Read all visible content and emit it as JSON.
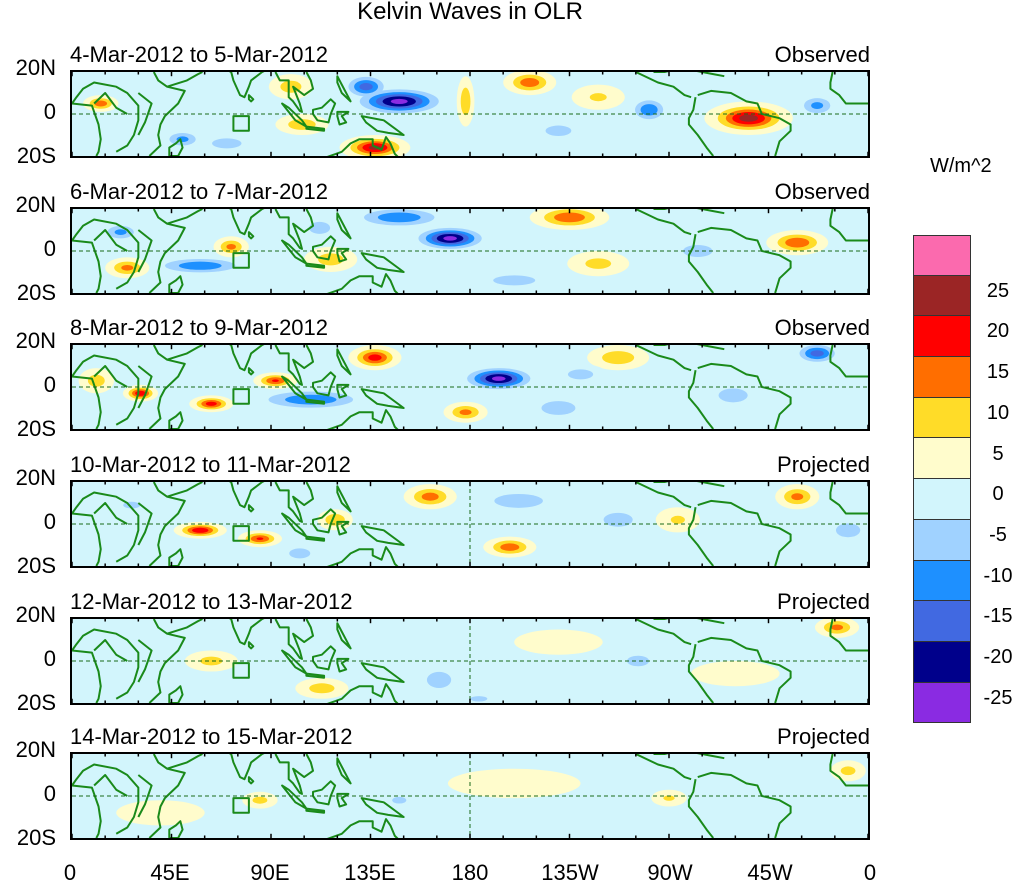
{
  "title": "Kelvin Waves in OLR",
  "units": "W/m^2",
  "y_ticks": [
    "20N",
    "0",
    "20S"
  ],
  "x_ticks": [
    {
      "label": "0",
      "lon": 0
    },
    {
      "label": "45E",
      "lon": 45
    },
    {
      "label": "90E",
      "lon": 90
    },
    {
      "label": "135E",
      "lon": 135
    },
    {
      "label": "180",
      "lon": 180
    },
    {
      "label": "135W",
      "lon": 225
    },
    {
      "label": "90W",
      "lon": 270
    },
    {
      "label": "45W",
      "lon": 315
    },
    {
      "label": "0",
      "lon": 360
    }
  ],
  "colorbar": {
    "labels": [
      "25",
      "20",
      "15",
      "10",
      "5",
      "0",
      "-5",
      "-10",
      "-15",
      "-20",
      "-25"
    ],
    "levels": [
      -25,
      -20,
      -15,
      -10,
      -5,
      0,
      5,
      10,
      15,
      20,
      25
    ],
    "colors": [
      "#8a2be2",
      "#00008b",
      "#4169e1",
      "#1e90ff",
      "#a0d2ff",
      "#d2f5fc",
      "#fffccc",
      "#ffdc28",
      "#ff6e00",
      "#ff0000",
      "#9b2525",
      "#fb6aae"
    ]
  },
  "coast_color": "#1a8a1a",
  "panels": [
    {
      "dates": "4-Mar-2012 to 5-Mar-2012",
      "type": "Observed",
      "anomalies": [
        [
          -27,
          148,
          6,
          25,
          8
        ],
        [
          -18,
          133,
          13,
          12,
          7
        ],
        [
          22,
          137,
          -16,
          16,
          6
        ],
        [
          14,
          207,
          15,
          12,
          6
        ],
        [
          23,
          306,
          -2,
          20,
          8
        ],
        [
          -15,
          261,
          2,
          10,
          7
        ],
        [
          -12,
          337,
          4,
          10,
          6
        ],
        [
          8,
          99,
          13,
          10,
          6
        ],
        [
          14,
          13,
          5,
          8,
          4
        ],
        [
          -12,
          50,
          -12,
          10,
          5
        ],
        [
          10,
          178,
          6,
          4,
          12
        ],
        [
          6,
          238,
          8,
          12,
          6
        ],
        [
          -7,
          220,
          -8,
          14,
          6
        ],
        [
          9,
          104,
          -5,
          12,
          5
        ],
        [
          -8,
          70,
          -14,
          14,
          5
        ]
      ]
    },
    {
      "dates": "6-Mar-2012 to 7-Mar-2012",
      "type": "Observed",
      "anomalies": [
        [
          -27,
          171,
          6,
          20,
          7
        ],
        [
          -15,
          148,
          16,
          25,
          6
        ],
        [
          15,
          225,
          16,
          18,
          6
        ],
        [
          15,
          328,
          4,
          14,
          6
        ],
        [
          -15,
          58,
          -7,
          25,
          5
        ],
        [
          12,
          25,
          -8,
          10,
          5
        ],
        [
          12,
          72,
          2,
          8,
          5
        ],
        [
          -12,
          22,
          9,
          10,
          5
        ],
        [
          8,
          117,
          -4,
          12,
          6
        ],
        [
          -8,
          283,
          0,
          14,
          6
        ],
        [
          7,
          238,
          -6,
          14,
          6
        ],
        [
          -8,
          112,
          11,
          10,
          6
        ],
        [
          -8,
          200,
          -14,
          20,
          5
        ]
      ]
    },
    {
      "dates": "8-Mar-2012 to 9-Mar-2012",
      "type": "Observed",
      "anomalies": [
        [
          18,
          137,
          14,
          12,
          6
        ],
        [
          -27,
          193,
          4,
          20,
          7
        ],
        [
          -15,
          108,
          -6,
          30,
          6
        ],
        [
          20,
          31,
          -3,
          8,
          4
        ],
        [
          18,
          63,
          -8,
          10,
          4
        ],
        [
          16,
          92,
          3,
          10,
          4
        ],
        [
          12,
          178,
          -12,
          10,
          5
        ],
        [
          -18,
          337,
          16,
          12,
          6
        ],
        [
          9,
          247,
          14,
          14,
          6
        ],
        [
          -10,
          220,
          -10,
          14,
          6
        ],
        [
          -10,
          299,
          -4,
          12,
          6
        ],
        [
          8,
          11,
          3,
          8,
          6
        ],
        [
          -8,
          230,
          6,
          12,
          5
        ]
      ]
    },
    {
      "dates": "10-Mar-2012 to 11-Mar-2012",
      "type": "Projected",
      "anomalies": [
        [
          13,
          162,
          13,
          12,
          6
        ],
        [
          20,
          58,
          -3,
          12,
          4
        ],
        [
          16,
          85,
          -7,
          10,
          4
        ],
        [
          14,
          198,
          -11,
          12,
          5
        ],
        [
          10,
          119,
          2,
          8,
          5
        ],
        [
          -10,
          202,
          11,
          20,
          6
        ],
        [
          -10,
          247,
          2,
          12,
          6
        ],
        [
          -10,
          351,
          -3,
          10,
          6
        ],
        [
          12,
          328,
          13,
          10,
          6
        ],
        [
          -8,
          103,
          -14,
          10,
          5
        ],
        [
          6,
          274,
          2,
          10,
          6
        ],
        [
          -6,
          27,
          9,
          12,
          5
        ]
      ]
    },
    {
      "dates": "12-Mar-2012 to 13-Mar-2012",
      "type": "Projected",
      "anomalies": [
        [
          7,
          63,
          0,
          12,
          5
        ],
        [
          8,
          113,
          -13,
          12,
          5
        ],
        [
          -10,
          166,
          -9,
          10,
          7
        ],
        [
          12,
          346,
          16,
          10,
          5
        ],
        [
          -7,
          256,
          0,
          12,
          6
        ],
        [
          4,
          220,
          9,
          20,
          6
        ],
        [
          -6,
          184,
          -18,
          12,
          4
        ],
        [
          -4,
          18,
          -9,
          10,
          5
        ],
        [
          4,
          300,
          -6,
          20,
          6
        ]
      ]
    },
    {
      "dates": "14-Mar-2012 to 15-Mar-2012",
      "type": "Projected",
      "anomalies": [
        [
          7,
          85,
          -2,
          8,
          4
        ],
        [
          6,
          270,
          -1,
          8,
          4
        ],
        [
          -6,
          148,
          -2,
          10,
          5
        ],
        [
          7,
          351,
          12,
          8,
          5
        ],
        [
          -5,
          193,
          -11,
          14,
          5
        ],
        [
          3,
          200,
          6,
          30,
          7
        ],
        [
          3,
          40,
          -8,
          20,
          6
        ]
      ]
    }
  ]
}
